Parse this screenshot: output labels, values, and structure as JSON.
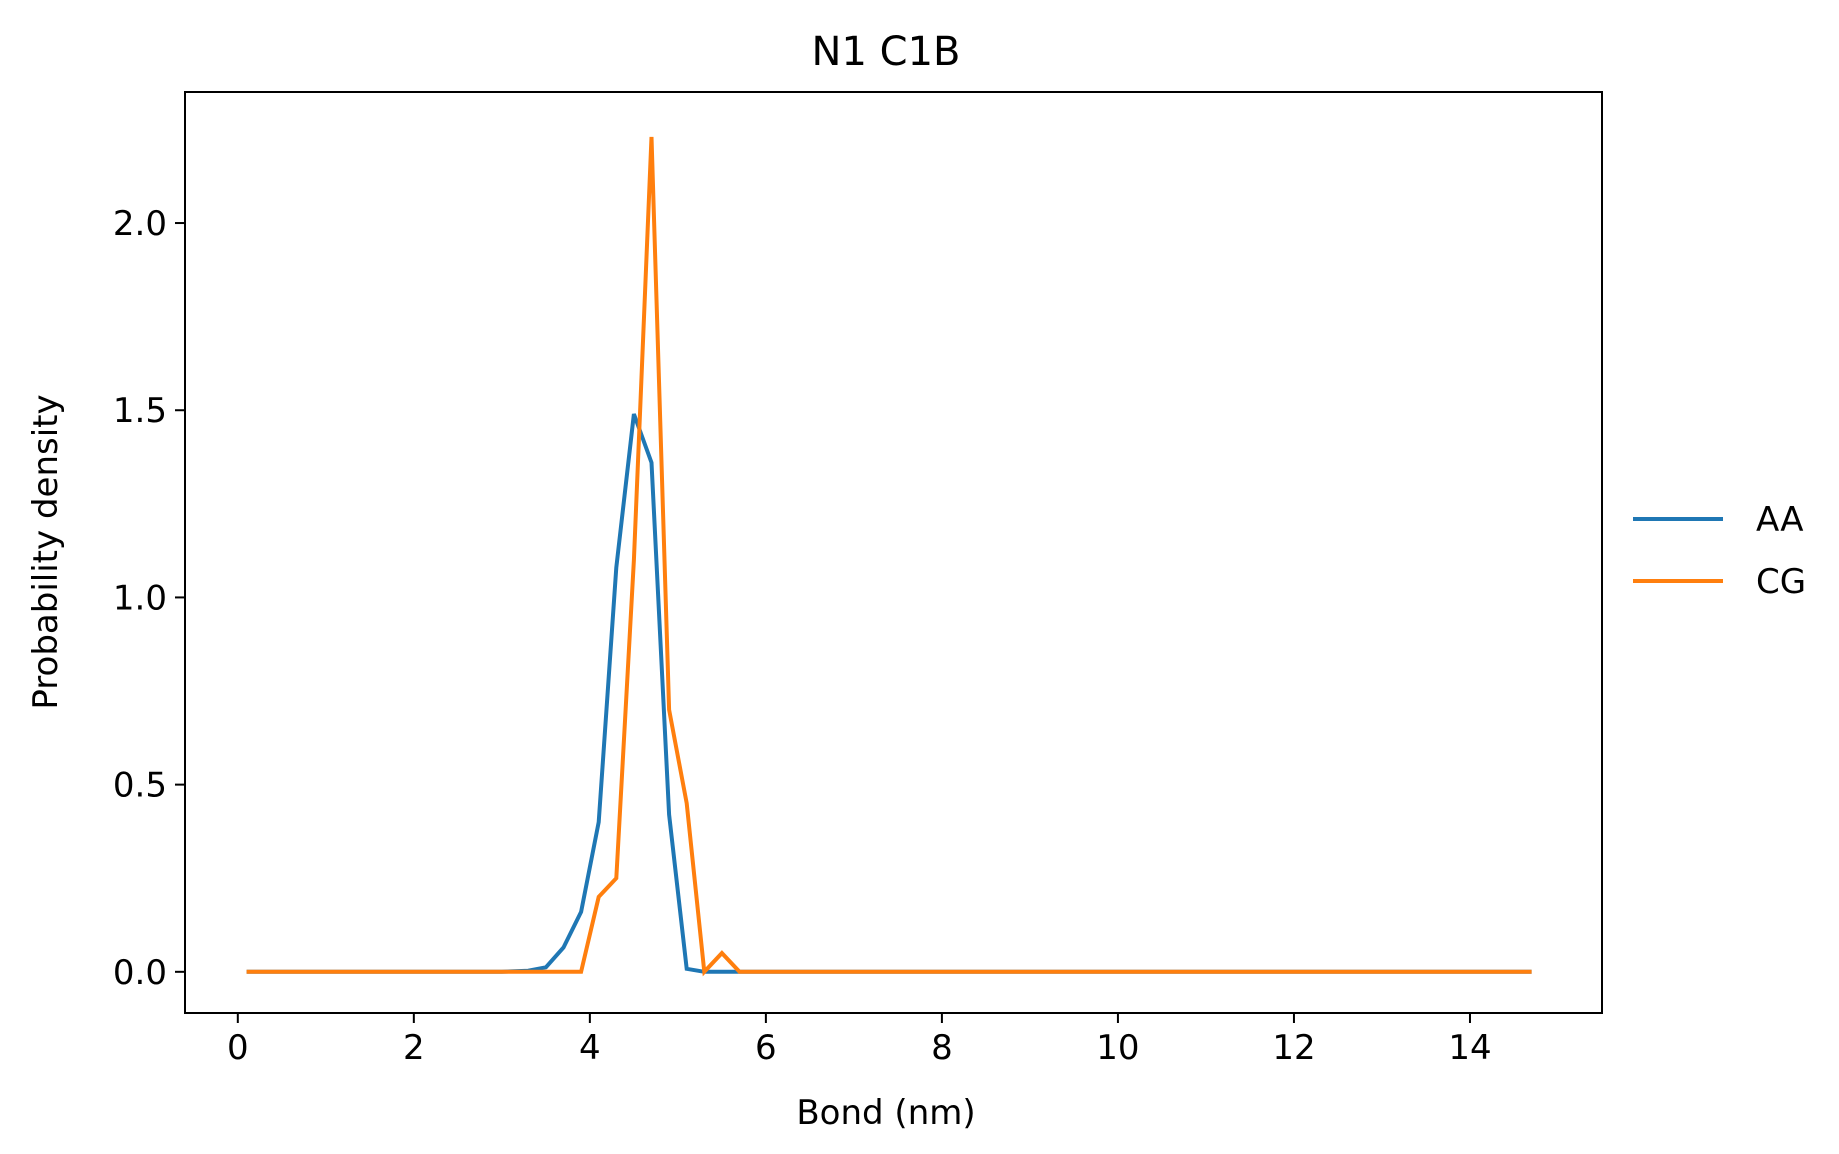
{
  "chart_data": {
    "type": "line",
    "title": "N1 C1B",
    "xlabel": "Bond (nm)",
    "ylabel": "Probability density",
    "xlim": [
      -0.6,
      15.5
    ],
    "ylim": [
      -0.11,
      2.35
    ],
    "xticks": [
      0,
      2,
      4,
      6,
      8,
      10,
      12,
      14
    ],
    "xtick_labels": [
      "0",
      "2",
      "4",
      "6",
      "8",
      "10",
      "12",
      "14"
    ],
    "yticks": [
      0.0,
      0.5,
      1.0,
      1.5,
      2.0
    ],
    "ytick_labels": [
      "0.0",
      "0.5",
      "1.0",
      "1.5",
      "2.0"
    ],
    "grid": false,
    "legend_position": "outside-right",
    "series": [
      {
        "name": "AA",
        "color": "#1f77b4",
        "x": [
          0.1,
          3.0,
          3.3,
          3.5,
          3.7,
          3.9,
          4.1,
          4.3,
          4.5,
          4.7,
          4.9,
          5.1,
          5.3,
          5.5,
          5.7,
          14.7
        ],
        "y": [
          0.0,
          0.0,
          0.003,
          0.012,
          0.065,
          0.16,
          0.4,
          1.08,
          1.49,
          1.36,
          0.42,
          0.008,
          0.0,
          0.0,
          0.0,
          0.0
        ]
      },
      {
        "name": "CG",
        "color": "#ff7f0e",
        "x": [
          0.1,
          3.9,
          4.1,
          4.3,
          4.5,
          4.7,
          4.9,
          5.1,
          5.3,
          5.5,
          5.7,
          14.7
        ],
        "y": [
          0.0,
          0.0,
          0.2,
          0.25,
          1.1,
          2.23,
          0.7,
          0.45,
          0.0,
          0.05,
          0.0,
          0.0
        ]
      }
    ]
  }
}
